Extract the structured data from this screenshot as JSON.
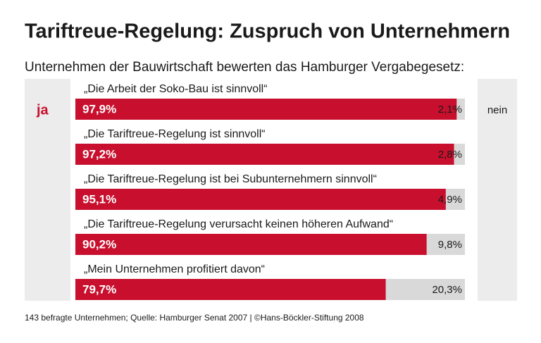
{
  "chart_data": {
    "type": "bar",
    "orientation": "horizontal",
    "stacked": true,
    "title": "Tariftreue-Regelung: Zuspruch von Unternehmern",
    "subtitle": "Unternehmen der Bauwirtschaft bewerten das Hamburger Vergabegesetz:",
    "categories": [
      "„Die Arbeit der Soko-Bau ist sinnvoll“",
      "„Die Tariftreue-Regelung ist sinnvoll“",
      "„Die Tariftreue-Regelung ist bei Subunternehmern sinnvoll“",
      "„Die Tariftreue-Regelung verursacht keinen höheren Aufwand“",
      "„Mein Unternehmen profitiert davon“"
    ],
    "series": [
      {
        "name": "ja",
        "color": "#c8102e",
        "values": [
          97.9,
          97.2,
          95.1,
          90.2,
          79.7
        ],
        "value_labels": [
          "97,9%",
          "97,2%",
          "95,1%",
          "90,2%",
          "79,7%"
        ]
      },
      {
        "name": "nein",
        "color": "#d9d9d9",
        "values": [
          2.1,
          2.8,
          4.9,
          9.8,
          20.3
        ],
        "value_labels": [
          "2,1%",
          "2,8%",
          "4,9%",
          "9,8%",
          "20,3%"
        ]
      }
    ],
    "xlim": [
      0,
      100
    ],
    "source": "143 befragte Unternehmen; Quelle: Hamburger Senat 2007 | ©Hans-Böckler-Stiftung 2008"
  }
}
